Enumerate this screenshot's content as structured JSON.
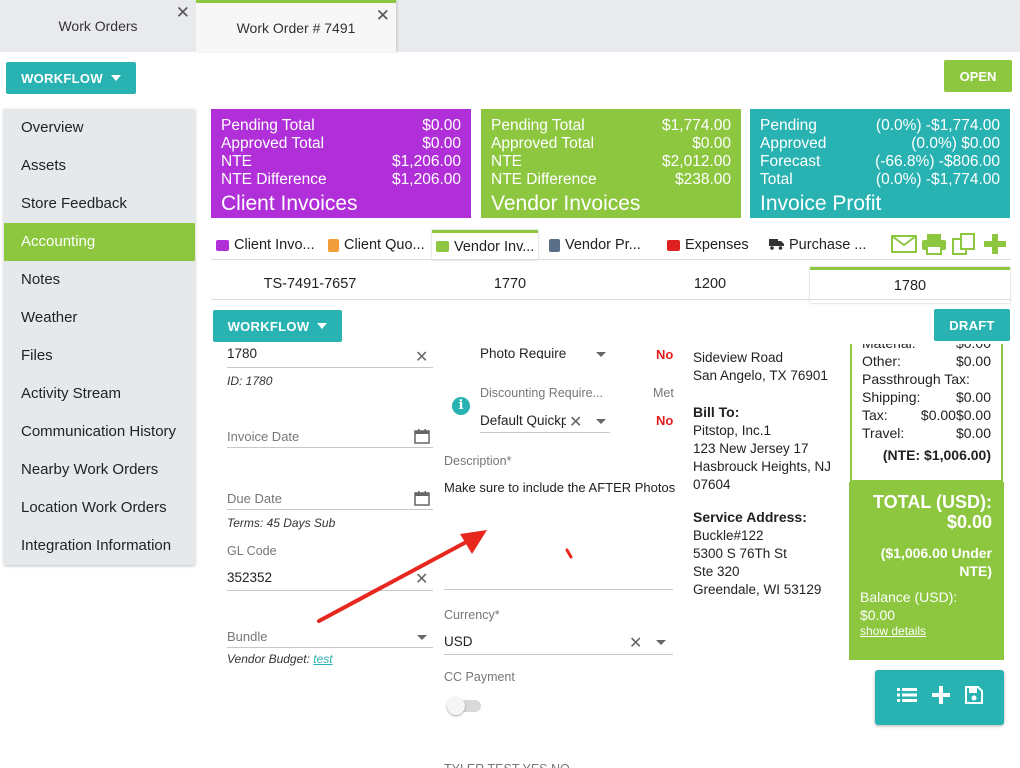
{
  "tabs": [
    {
      "label": "Work Orders"
    },
    {
      "label": "Work Order # 7491"
    }
  ],
  "header": {
    "workflow_label": "WORKFLOW",
    "status_label": "OPEN"
  },
  "sidebar": {
    "items": [
      {
        "label": "Overview"
      },
      {
        "label": "Assets"
      },
      {
        "label": "Store Feedback"
      },
      {
        "label": "Accounting"
      },
      {
        "label": "Notes"
      },
      {
        "label": "Weather"
      },
      {
        "label": "Files"
      },
      {
        "label": "Activity Stream"
      },
      {
        "label": "Communication History"
      },
      {
        "label": "Nearby Work Orders"
      },
      {
        "label": "Location Work Orders"
      },
      {
        "label": "Integration Information"
      }
    ],
    "active_index": 3
  },
  "cards": {
    "client": {
      "title": "Client Invoices",
      "rows": [
        {
          "label": "Pending Total",
          "value": "$0.00"
        },
        {
          "label": "Approved Total",
          "value": "$0.00"
        },
        {
          "label": "NTE",
          "value": "$1,206.00"
        },
        {
          "label": "NTE Difference",
          "value": "$1,206.00"
        }
      ]
    },
    "vendor": {
      "title": "Vendor Invoices",
      "rows": [
        {
          "label": "Pending Total",
          "value": "$1,774.00"
        },
        {
          "label": "Approved Total",
          "value": "$0.00"
        },
        {
          "label": "NTE",
          "value": "$2,012.00"
        },
        {
          "label": "NTE Difference",
          "value": "$238.00"
        }
      ]
    },
    "profit": {
      "title": "Invoice Profit",
      "rows": [
        {
          "label": "Pending",
          "value": "(0.0%) -$1,774.00"
        },
        {
          "label": "Approved",
          "value": "(0.0%) $0.00"
        },
        {
          "label": "Forecast",
          "value": "(-66.8%) -$806.00"
        },
        {
          "label": "Total",
          "value": "(0.0%) -$1,774.00"
        }
      ]
    }
  },
  "subtabs": [
    {
      "label": "Client Invo..."
    },
    {
      "label": "Client Quo..."
    },
    {
      "label": "Vendor Inv..."
    },
    {
      "label": "Vendor Pr..."
    },
    {
      "label": "Expenses"
    },
    {
      "label": "Purchase ..."
    }
  ],
  "invoice_tabs": [
    {
      "label": "TS-7491-7657"
    },
    {
      "label": "1770"
    },
    {
      "label": "1200"
    },
    {
      "label": "1780"
    }
  ],
  "invoice_toolbar": {
    "workflow_label": "WORKFLOW",
    "status_label": "DRAFT"
  },
  "form": {
    "invoice_number": "1780",
    "id_text": "ID: 1780",
    "invoice_date_label": "Invoice Date",
    "due_date_label": "Due Date",
    "terms_text": "Terms: 45 Days Sub",
    "gl_code_label": "GL Code",
    "gl_code_value": "352352",
    "bundle_label": "Bundle",
    "vendor_budget_label": "Vendor Budget:",
    "vendor_budget_link": "test",
    "photo_required_value": "Photo Required",
    "photo_required_flag": "No",
    "discounting_label": "Discounting Require...",
    "discounting_value": "Default Quickp",
    "met_label": "Met",
    "met_flag": "No",
    "description_label": "Description*",
    "description_value": "Make sure to include the AFTER Photos",
    "currency_label": "Currency*",
    "currency_value": "USD",
    "cc_payment_label": "CC Payment",
    "bottom_cut_label": "TYLER TEST YES NO"
  },
  "address": {
    "vendor_line1": "Sideview Road",
    "vendor_line2": "San Angelo, TX 76901",
    "bill_to_heading": "Bill To:",
    "bill_to_lines": [
      "Pitstop, Inc.1",
      "123 New Jersey 17",
      "Hasbrouck Heights, NJ",
      "07604"
    ],
    "service_heading": "Service Address:",
    "service_lines": [
      "Buckle#122",
      "5300 S 76Th St",
      "Ste 320",
      "Greendale, WI 53129"
    ]
  },
  "totals": {
    "rows": [
      {
        "label": "Material:",
        "value": "$0.00"
      },
      {
        "label": "Other:",
        "value": "$0.00"
      },
      {
        "label": "Passthrough Tax:",
        "value": ""
      },
      {
        "label": "Shipping:",
        "value": "$0.00"
      },
      {
        "label": "Tax:",
        "value": "$0.00$0.00"
      },
      {
        "label": "Travel:",
        "value": "$0.00"
      }
    ],
    "nte_text": "(NTE: $1,006.00)",
    "total_label": "TOTAL (USD):",
    "total_value": "$0.00",
    "under_nte_text": "($1,006.00 Under NTE)",
    "balance_label": "Balance (USD):",
    "balance_value": "$0.00",
    "show_details": "show details"
  },
  "colors": {
    "green": "#8dc63f",
    "teal": "#29b2b2",
    "purple": "#b12fd8",
    "red_arrow": "#e8281e"
  }
}
